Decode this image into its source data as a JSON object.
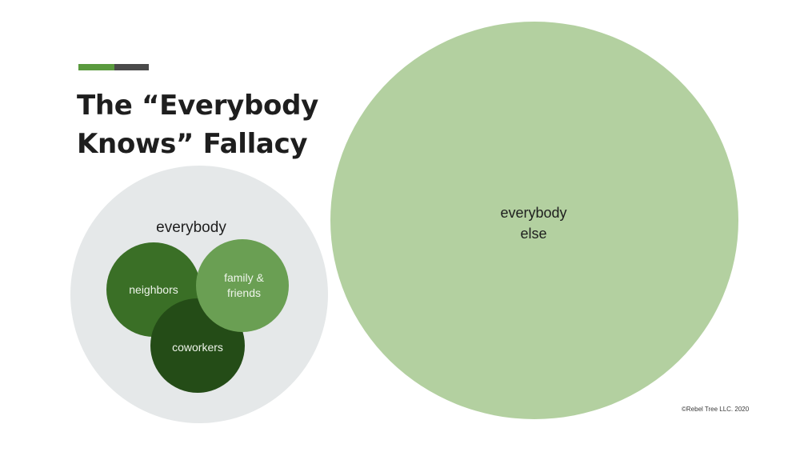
{
  "title": "The “Everybody Knows” Fallacy",
  "diagram": {
    "outer_label": "everybody",
    "groups": [
      {
        "name": "neighbors",
        "label": "neighbors",
        "color": "#3a6f26"
      },
      {
        "name": "coworkers",
        "label": "coworkers",
        "color": "#244c17"
      },
      {
        "name": "family",
        "label": "family & friends",
        "color": "#6a9f53"
      }
    ],
    "big_label": "everybody else",
    "big_color": "#b3d0a0",
    "outer_color": "#e5e8e9"
  },
  "copyright": "©Rebel Tree LLC. 2020",
  "accent_colors": {
    "green": "#5a9a3e",
    "gray": "#4a4a4a"
  }
}
